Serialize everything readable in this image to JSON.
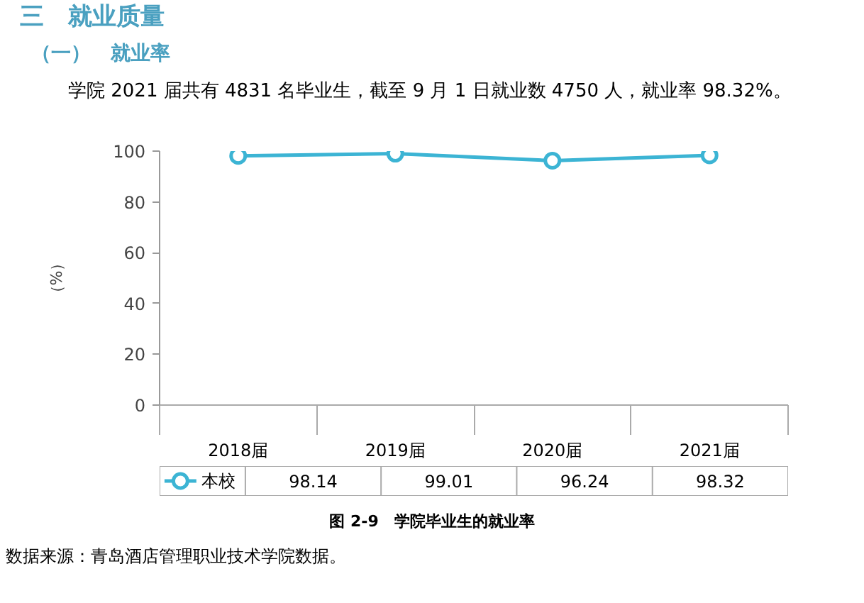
{
  "chart_data": {
    "type": "line",
    "title": "三　就业质量",
    "subtitle": "（一）　就业率",
    "annotations": [
      "学院 2021 届共有 4831 名毕业生，截至 9 月 1 日就业数 4750 人，就业率 98.32%。",
      "图 2-9　学院毕业生的就业率",
      "数据来源：青岛酒店管理职业技术学院数据。"
    ],
    "ylabel": "（%）",
    "categories": [
      "2018届",
      "2019届",
      "2020届",
      "2021届"
    ],
    "series": [
      {
        "name": "本校",
        "color": "#3cb4d4",
        "values": [
          98.14,
          99.01,
          96.24,
          98.32
        ]
      }
    ],
    "ylim": [
      0,
      100
    ],
    "yticks": [
      0,
      20,
      40,
      60,
      80,
      100
    ],
    "marker": "circle",
    "data_labels": true,
    "legend": "bottom"
  }
}
